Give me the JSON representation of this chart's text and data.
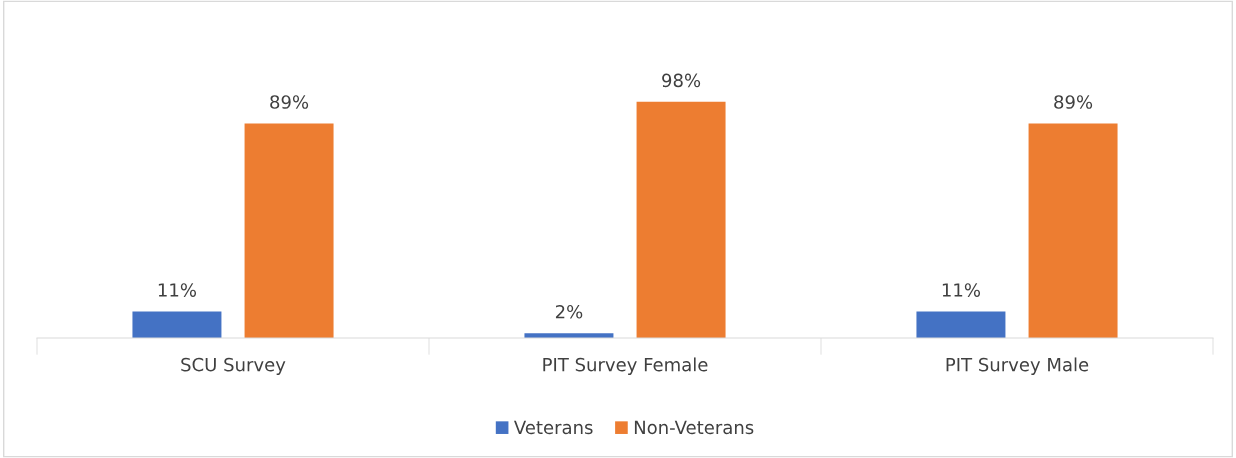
{
  "chart_data": {
    "type": "bar",
    "categories": [
      "SCU Survey",
      "PIT Survey Female",
      "PIT Survey Male"
    ],
    "series": [
      {
        "name": "Veterans",
        "color": "#4472c4",
        "values": [
          11,
          2,
          11
        ],
        "value_labels": [
          "11%",
          "2%",
          "11%"
        ]
      },
      {
        "name": "Non-Veterans",
        "color": "#ed7d31",
        "values": [
          89,
          98,
          89
        ],
        "value_labels": [
          "89%",
          "98%",
          "89%"
        ]
      }
    ],
    "legend": "bottom"
  }
}
